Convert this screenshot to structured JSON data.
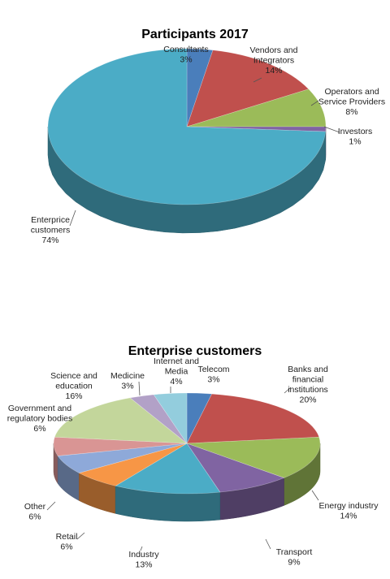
{
  "chart_data": [
    {
      "type": "pie",
      "title": "Participants 2017",
      "categories": [
        "Consultants",
        "Vendors and Integrators",
        "Operators and Service Providers",
        "Investors",
        "Enterprice customers"
      ],
      "values": [
        3,
        14,
        8,
        1,
        74
      ],
      "value_labels": [
        "3%",
        "14%",
        "8%",
        "1%",
        "74%"
      ],
      "label_lines": [
        [
          "Consultants"
        ],
        [
          "Vendors and",
          "Integrators"
        ],
        [
          "Operators and",
          "Service Providers"
        ],
        [
          "Investors"
        ],
        [
          "Enterprice",
          "customers"
        ]
      ],
      "colors": [
        "#4a7ebb",
        "#c0504d",
        "#9bbb59",
        "#8064a2",
        "#4bacc6"
      ],
      "three_d": true
    },
    {
      "type": "pie",
      "title": "Enterprise customers",
      "categories": [
        "Telecom",
        "Banks and financial institutions",
        "Energy industry",
        "Transport",
        "Industry",
        "Retail",
        "Other",
        "Government and regulatory bodies",
        "Science and education",
        "Medicine",
        "Internet and Media"
      ],
      "values": [
        3,
        20,
        14,
        9,
        13,
        6,
        6,
        6,
        16,
        3,
        4
      ],
      "value_labels": [
        "3%",
        "20%",
        "14%",
        "9%",
        "13%",
        "6%",
        "6%",
        "6%",
        "16%",
        "3%",
        "4%"
      ],
      "label_lines": [
        [
          "Telecom"
        ],
        [
          "Banks and",
          "financial",
          "institutions"
        ],
        [
          "Energy industry"
        ],
        [
          "Transport"
        ],
        [
          "Industry"
        ],
        [
          "Retail"
        ],
        [
          "Other"
        ],
        [
          "Government and",
          "regulatory bodies"
        ],
        [
          "Science and",
          "education"
        ],
        [
          "Medicine"
        ],
        [
          "Internet and",
          "Media"
        ]
      ],
      "colors": [
        "#4a7ebb",
        "#c0504d",
        "#9bbb59",
        "#8064a2",
        "#4bacc6",
        "#f79646",
        "#8ea9d9",
        "#d99594",
        "#c3d69b",
        "#b2a1c7",
        "#93cddd"
      ],
      "three_d": true
    }
  ]
}
